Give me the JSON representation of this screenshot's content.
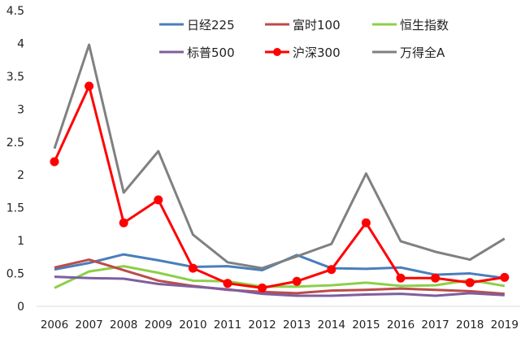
{
  "chart_data": {
    "type": "line",
    "title": "",
    "xlabel": "",
    "ylabel": "",
    "ylim": [
      0,
      4.5
    ],
    "yticks": [
      "0",
      "0.5",
      "1",
      "1.5",
      "2",
      "2.5",
      "3",
      "3.5",
      "4",
      "4.5"
    ],
    "grid": false,
    "legend_position": "top",
    "categories": [
      "2006",
      "2007",
      "2008",
      "2009",
      "2010",
      "2011",
      "2012",
      "2013",
      "2014",
      "2015",
      "2016",
      "2017",
      "2018",
      "2019"
    ],
    "series": [
      {
        "name": "日经225",
        "color": "#4a7ebb",
        "marker": false,
        "values": [
          0.56,
          0.66,
          0.79,
          0.7,
          0.6,
          0.61,
          0.55,
          0.78,
          0.58,
          0.57,
          0.59,
          0.48,
          0.5,
          0.43
        ]
      },
      {
        "name": "富时100",
        "color": "#be4b48",
        "marker": false,
        "values": [
          0.59,
          0.71,
          0.55,
          0.39,
          0.31,
          0.25,
          0.22,
          0.2,
          0.24,
          0.25,
          0.27,
          0.25,
          0.23,
          0.19
        ]
      },
      {
        "name": "恒生指数",
        "color": "#8ccf4a",
        "marker": false,
        "values": [
          0.28,
          0.53,
          0.61,
          0.51,
          0.39,
          0.38,
          0.3,
          0.3,
          0.32,
          0.36,
          0.31,
          0.32,
          0.4,
          0.31
        ]
      },
      {
        "name": "标普500",
        "color": "#7d5fa0",
        "marker": false,
        "values": [
          0.45,
          0.43,
          0.42,
          0.34,
          0.3,
          0.26,
          0.19,
          0.16,
          0.16,
          0.18,
          0.19,
          0.16,
          0.2,
          0.17
        ]
      },
      {
        "name": "沪深300",
        "color": "#ff0000",
        "marker": true,
        "values": [
          2.2,
          3.35,
          1.27,
          1.62,
          0.58,
          0.35,
          0.28,
          0.38,
          0.56,
          1.27,
          0.43,
          0.43,
          0.36,
          0.44
        ]
      },
      {
        "name": "万得全A",
        "color": "#808080",
        "marker": false,
        "values": [
          2.4,
          3.98,
          1.73,
          2.36,
          1.09,
          0.67,
          0.58,
          0.76,
          0.95,
          2.02,
          0.99,
          0.83,
          0.71,
          1.03
        ]
      }
    ]
  }
}
